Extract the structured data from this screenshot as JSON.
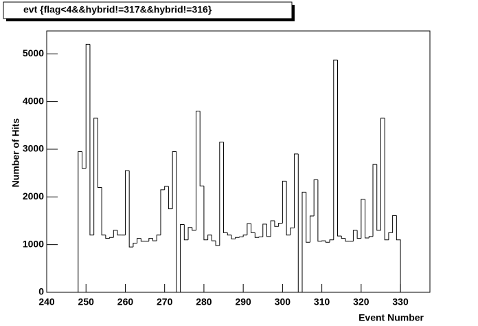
{
  "chart_data": {
    "type": "histogram",
    "title": "evt {flag<4&&hybrid!=317&&hybrid!=316}",
    "x_label": "Event Number",
    "y_label": "Number of Hits",
    "bins": [
      248,
      249,
      250,
      251,
      252,
      253,
      254,
      255,
      256,
      257,
      258,
      259,
      260,
      261,
      262,
      263,
      264,
      265,
      266,
      267,
      268,
      269,
      270,
      271,
      272,
      273,
      274,
      275,
      276,
      277,
      278,
      279,
      280,
      281,
      282,
      283,
      284,
      285,
      286,
      287,
      288,
      289,
      290,
      291,
      292,
      293,
      294,
      295,
      296,
      297,
      298,
      299,
      300,
      301,
      302,
      303,
      304,
      305,
      306,
      307,
      308,
      309,
      310,
      311,
      312,
      313,
      314,
      315,
      316,
      317,
      318,
      319,
      320,
      321,
      322,
      323,
      324,
      325,
      326,
      327,
      328,
      329,
      330
    ],
    "values": [
      2950,
      2600,
      5200,
      1200,
      3650,
      2200,
      1200,
      1130,
      1150,
      1300,
      1200,
      1200,
      2550,
      950,
      1030,
      1130,
      1070,
      1070,
      1130,
      1080,
      1200,
      2150,
      2220,
      1750,
      2950,
      0,
      1420,
      1100,
      1360,
      1300,
      3800,
      2230,
      1100,
      1200,
      1080,
      980,
      3150,
      1250,
      1200,
      1120,
      1150,
      1160,
      1200,
      1440,
      1250,
      1150,
      1160,
      1430,
      1170,
      1500,
      1380,
      1450,
      2330,
      1200,
      1350,
      2900,
      0,
      2100,
      1050,
      1600,
      2360,
      1070,
      1080,
      1050,
      1100,
      4870,
      1180,
      1130,
      1070,
      1070,
      1300,
      1130,
      1950,
      1140,
      1170,
      2680,
      1300,
      3650,
      1100,
      1250,
      1610,
      1100
    ],
    "color": "#000000",
    "xlim": [
      240,
      337.5
    ],
    "ylim": [
      0,
      5480
    ],
    "xticks": [
      240,
      250,
      260,
      270,
      280,
      290,
      300,
      310,
      320,
      330
    ],
    "yticks": [
      0,
      1000,
      2000,
      3000,
      4000,
      5000
    ]
  }
}
